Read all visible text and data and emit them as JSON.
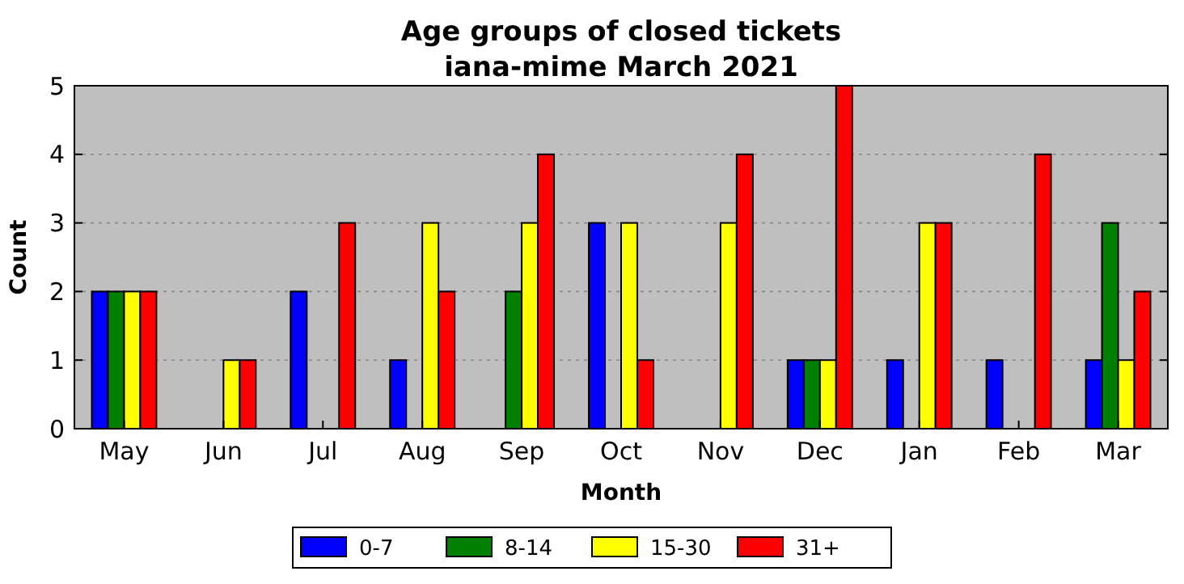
{
  "chart_data": {
    "type": "bar",
    "title": "Age groups of closed tickets",
    "subtitle": "iana-mime March 2021",
    "xlabel": "Month",
    "ylabel": "Count",
    "categories": [
      "May",
      "Jun",
      "Jul",
      "Aug",
      "Sep",
      "Oct",
      "Nov",
      "Dec",
      "Jan",
      "Feb",
      "Mar"
    ],
    "series": [
      {
        "name": "0-7",
        "color": "#0000ff",
        "values": [
          2,
          0,
          2,
          1,
          0,
          3,
          0,
          1,
          1,
          1,
          1
        ]
      },
      {
        "name": "8-14",
        "color": "#008000",
        "values": [
          2,
          0,
          0,
          0,
          2,
          0,
          0,
          1,
          0,
          0,
          3
        ]
      },
      {
        "name": "15-30",
        "color": "#ffff00",
        "values": [
          2,
          1,
          0,
          3,
          3,
          3,
          3,
          1,
          3,
          0,
          1
        ]
      },
      {
        "name": "31+",
        "color": "#ff0000",
        "values": [
          2,
          1,
          3,
          2,
          4,
          1,
          4,
          5,
          3,
          4,
          2
        ]
      }
    ],
    "ylim": [
      0,
      5
    ],
    "yticks": [
      0,
      1,
      2,
      3,
      4,
      5
    ],
    "grid": "y",
    "legend": "bottom"
  }
}
